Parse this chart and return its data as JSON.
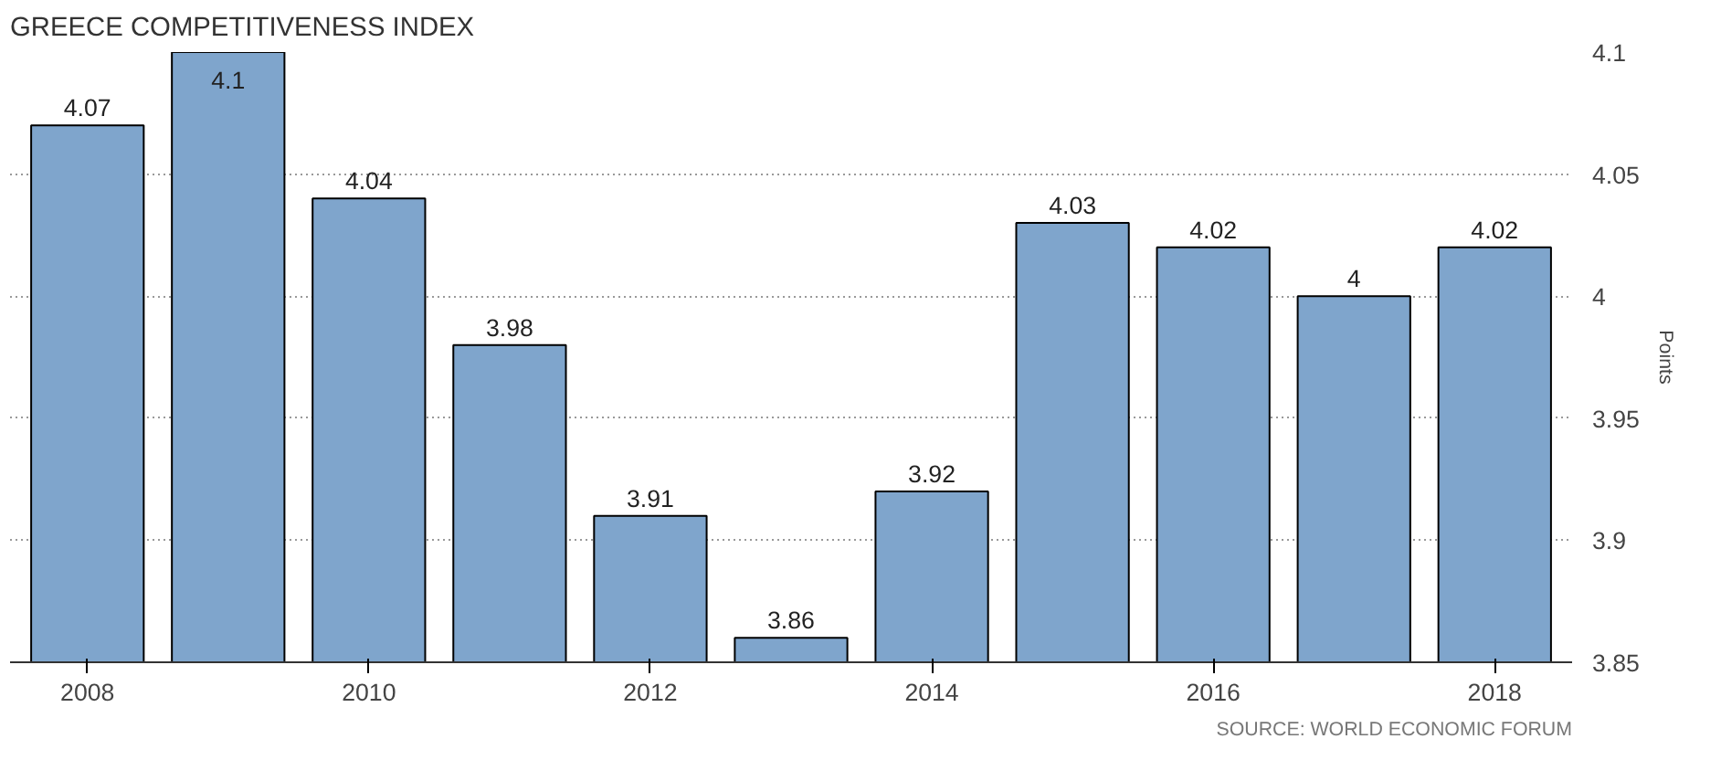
{
  "chart_data": {
    "type": "bar",
    "title": "GREECE COMPETITIVENESS INDEX",
    "ylabel": "Points",
    "categories": [
      "2008",
      null,
      "2010",
      null,
      "2012",
      null,
      "2014",
      null,
      "2016",
      null,
      "2018"
    ],
    "values": [
      4.07,
      4.1,
      4.04,
      3.98,
      3.91,
      3.86,
      3.92,
      4.03,
      4.02,
      4,
      4.02
    ],
    "color": "#7fa5cc",
    "data_labels": true,
    "ylim": [
      3.85,
      4.1
    ],
    "yticks": [
      3.85,
      3.9,
      3.95,
      4,
      4.05,
      4.1
    ],
    "grid": "y",
    "annotations": [
      "SOURCE: WORLD ECONOMIC FORUM"
    ]
  }
}
